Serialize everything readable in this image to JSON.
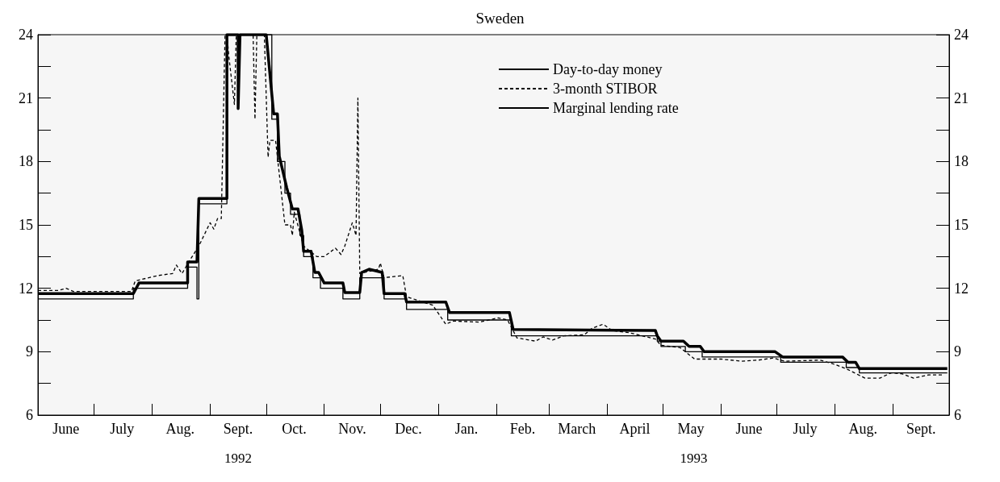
{
  "chart_data": {
    "type": "line",
    "title": "Sweden",
    "annotations": [
      "1992",
      "1993"
    ],
    "xlim": [
      "1992-06-01",
      "1993-10-01"
    ],
    "xticks": [
      {
        "value": "1992-07-01",
        "label": null
      },
      {
        "value": "1992-08-01",
        "label": null
      },
      {
        "value": "1992-09-01",
        "label": null
      },
      {
        "value": "1992-10-01",
        "label": null
      },
      {
        "value": "1992-11-01",
        "label": null
      },
      {
        "value": "1992-12-01",
        "label": null
      },
      {
        "value": "1993-01-01",
        "label": null
      },
      {
        "value": "1993-02-01",
        "label": null
      },
      {
        "value": "1993-03-01",
        "label": null
      },
      {
        "value": "1993-04-01",
        "label": null
      },
      {
        "value": "1993-05-01",
        "label": null
      },
      {
        "value": "1993-06-01",
        "label": null
      },
      {
        "value": "1993-07-01",
        "label": null
      },
      {
        "value": "1993-08-01",
        "label": null
      },
      {
        "value": "1993-09-01",
        "label": null
      },
      {
        "value": "1992-06-16",
        "label": "June"
      },
      {
        "value": "1992-07-16",
        "label": "July"
      },
      {
        "value": "1992-08-16",
        "label": "Aug."
      },
      {
        "value": "1992-09-16",
        "label": "Sept."
      },
      {
        "value": "1992-10-16",
        "label": "Oct."
      },
      {
        "value": "1992-11-16",
        "label": "Nov."
      },
      {
        "value": "1992-12-16",
        "label": "Dec."
      },
      {
        "value": "1993-01-16",
        "label": "Jan."
      },
      {
        "value": "1993-02-15",
        "label": "Feb."
      },
      {
        "value": "1993-03-16",
        "label": "March"
      },
      {
        "value": "1993-04-16",
        "label": "April"
      },
      {
        "value": "1993-05-16",
        "label": "May"
      },
      {
        "value": "1993-06-16",
        "label": "June"
      },
      {
        "value": "1993-07-16",
        "label": "July"
      },
      {
        "value": "1993-08-16",
        "label": "Aug."
      },
      {
        "value": "1993-09-16",
        "label": "Sept."
      }
    ],
    "ylim": [
      6,
      24
    ],
    "yticks": [
      6,
      {
        "value": 7.5,
        "label": null
      },
      9,
      {
        "value": 10.5,
        "label": null
      },
      12,
      {
        "value": 13.5,
        "label": null
      },
      15,
      {
        "value": 16.5,
        "label": null
      },
      18,
      {
        "value": 19.5,
        "label": null
      },
      21,
      {
        "value": 22.5,
        "label": null
      },
      24
    ],
    "y2lim": [
      6,
      24
    ],
    "y2ticks": [
      6,
      {
        "value": 7.5,
        "label": null
      },
      9,
      {
        "value": 10.5,
        "label": null
      },
      12,
      {
        "value": 13.5,
        "label": null
      },
      15,
      {
        "value": 16.5,
        "label": null
      },
      18,
      {
        "value": 19.5,
        "label": null
      },
      21,
      {
        "value": 22.5,
        "label": null
      },
      24
    ],
    "grid": false,
    "legend": "top right",
    "marker": "none",
    "series": [
      {
        "name": "Day-to-day money",
        "line_style": "solid",
        "color": "#000000",
        "x": [
          "1992-06-01",
          "1992-07-22",
          "1992-07-25",
          "1992-08-20",
          "1992-08-20",
          "1992-08-25",
          "1992-08-26",
          "1992-09-10",
          "1992-09-10",
          "1992-09-16",
          "1992-09-16",
          "1992-09-17",
          "1992-10-01",
          "1992-10-05",
          "1992-10-07",
          "1992-10-08",
          "1992-10-12",
          "1992-10-15",
          "1992-10-18",
          "1992-10-20",
          "1992-10-21",
          "1992-10-25",
          "1992-10-27",
          "1992-10-29",
          "1992-11-01",
          "1992-11-11",
          "1992-11-12",
          "1992-11-20",
          "1992-11-21",
          "1992-11-25",
          "1992-12-02",
          "1992-12-03",
          "1992-12-14",
          "1992-12-15",
          "1993-01-05",
          "1993-01-07",
          "1993-02-08",
          "1993-02-10",
          "1993-04-27",
          "1993-04-28",
          "1993-04-30",
          "1993-05-12",
          "1993-05-15",
          "1993-05-21",
          "1993-05-23",
          "1993-06-30",
          "1993-07-04",
          "1993-08-05",
          "1993-08-08",
          "1993-08-12",
          "1993-08-14",
          "1993-09-30"
        ],
        "values": [
          11.75,
          11.75,
          12.25,
          12.25,
          13.25,
          13.25,
          16.25,
          16.25,
          24,
          24,
          20.5,
          24,
          24,
          20.25,
          20.25,
          18.25,
          16.75,
          15.75,
          15.75,
          14.75,
          13.75,
          13.75,
          12.75,
          12.75,
          12.25,
          12.25,
          11.8,
          11.8,
          12.75,
          12.9,
          12.75,
          11.75,
          11.75,
          11.35,
          11.35,
          10.85,
          10.85,
          10.05,
          10.0,
          9.75,
          9.5,
          9.5,
          9.25,
          9.25,
          9.0,
          9.0,
          8.75,
          8.75,
          8.5,
          8.5,
          8.2,
          8.2
        ]
      },
      {
        "name": "3-month STIBOR",
        "line_style": "dashed",
        "color": "#000000",
        "x": [
          "1992-06-01",
          "1992-06-12",
          "1992-06-16",
          "1992-06-20",
          "1992-07-21",
          "1992-07-23",
          "1992-08-04",
          "1992-08-12",
          "1992-08-14",
          "1992-08-17",
          "1992-08-21",
          "1992-08-26",
          "1992-09-01",
          "1992-09-03",
          "1992-09-05",
          "1992-09-07",
          "1992-09-09",
          "1992-09-10",
          "1992-09-11",
          "1992-09-14",
          "1992-09-15",
          "1992-09-24",
          "1992-09-25",
          "1992-09-26",
          "1992-09-30",
          "1992-10-02",
          "1992-10-03",
          "1992-10-06",
          "1992-10-11",
          "1992-10-14",
          "1992-10-15",
          "1992-10-16",
          "1992-10-21",
          "1992-10-28",
          "1992-11-01",
          "1992-11-07",
          "1992-11-10",
          "1992-11-12",
          "1992-11-16",
          "1992-11-18",
          "1992-11-19",
          "1992-11-20",
          "1992-11-30",
          "1992-12-01",
          "1992-12-03",
          "1992-12-13",
          "1992-12-15",
          "1992-12-29",
          "1993-01-05",
          "1993-01-09",
          "1993-01-23",
          "1993-02-02",
          "1993-02-07",
          "1993-02-12",
          "1993-02-22",
          "1993-02-26",
          "1993-03-03",
          "1993-03-09",
          "1993-03-20",
          "1993-03-24",
          "1993-03-30",
          "1993-04-04",
          "1993-04-13",
          "1993-04-27",
          "1993-04-30",
          "1993-05-10",
          "1993-05-13",
          "1993-05-18",
          "1993-06-01",
          "1993-06-12",
          "1993-06-21",
          "1993-06-29",
          "1993-07-05",
          "1993-07-24",
          "1993-08-01",
          "1993-08-08",
          "1993-08-17",
          "1993-08-25",
          "1993-08-31",
          "1993-09-06",
          "1993-09-12",
          "1993-09-20",
          "1993-09-28"
        ],
        "values": [
          11.9,
          11.9,
          12.0,
          11.85,
          11.85,
          12.35,
          12.6,
          12.7,
          13.1,
          12.7,
          13.3,
          14.0,
          15.1,
          14.8,
          15.3,
          15.3,
          24,
          24,
          23.0,
          20.7,
          24,
          24,
          20.0,
          24,
          24,
          18.2,
          19.0,
          19.0,
          15.0,
          15.0,
          14.5,
          15.6,
          14.0,
          13.5,
          13.5,
          13.9,
          13.6,
          14.0,
          15.1,
          14.5,
          21.0,
          12.7,
          12.9,
          13.2,
          12.5,
          12.6,
          11.6,
          11.2,
          10.3,
          10.45,
          10.4,
          10.6,
          10.5,
          9.65,
          9.5,
          9.7,
          9.55,
          9.75,
          9.8,
          10.1,
          10.3,
          10.0,
          9.9,
          9.6,
          9.3,
          9.2,
          9.0,
          8.65,
          8.65,
          8.55,
          8.6,
          8.7,
          8.55,
          8.6,
          8.4,
          8.15,
          7.75,
          7.75,
          8.0,
          7.95,
          7.75,
          7.9,
          7.9
        ]
      },
      {
        "name": "Marginal lending rate",
        "line_style": "solid",
        "color": "#000000",
        "x": [
          "1992-06-01",
          "1992-07-22",
          "1992-07-22",
          "1992-08-20",
          "1992-08-20",
          "1992-08-25",
          "1992-08-25",
          "1992-08-26",
          "1992-08-26",
          "1992-09-10",
          "1992-09-10",
          "1992-10-04",
          "1992-10-04",
          "1992-10-07",
          "1992-10-07",
          "1992-10-11",
          "1992-10-11",
          "1992-10-14",
          "1992-10-14",
          "1992-10-19",
          "1992-10-19",
          "1992-10-21",
          "1992-10-21",
          "1992-10-26",
          "1992-10-26",
          "1992-10-30",
          "1992-10-30",
          "1992-11-11",
          "1992-11-11",
          "1992-11-20",
          "1992-11-20",
          "1992-12-03",
          "1992-12-03",
          "1992-12-15",
          "1992-12-15",
          "1993-01-06",
          "1993-01-06",
          "1993-02-09",
          "1993-02-09",
          "1993-04-28",
          "1993-04-28",
          "1993-04-30",
          "1993-04-30",
          "1993-05-13",
          "1993-05-13",
          "1993-05-22",
          "1993-05-22",
          "1993-07-03",
          "1993-07-03",
          "1993-08-07",
          "1993-08-07",
          "1993-08-14",
          "1993-08-14",
          "1993-09-30"
        ],
        "values": [
          11.5,
          11.5,
          12.0,
          12.0,
          13.0,
          13.0,
          11.5,
          11.5,
          16.0,
          16.0,
          24,
          24,
          20.0,
          20.0,
          18.0,
          18.0,
          16.5,
          16.5,
          15.5,
          15.5,
          14.5,
          14.5,
          13.5,
          13.5,
          12.5,
          12.5,
          12.0,
          12.0,
          11.5,
          11.5,
          12.5,
          12.5,
          11.5,
          11.5,
          11.0,
          11.0,
          10.5,
          10.5,
          9.75,
          9.75,
          9.5,
          9.5,
          9.25,
          9.25,
          9.0,
          9.0,
          8.75,
          8.75,
          8.5,
          8.5,
          8.25,
          8.25,
          8.0,
          8.0
        ]
      }
    ]
  }
}
